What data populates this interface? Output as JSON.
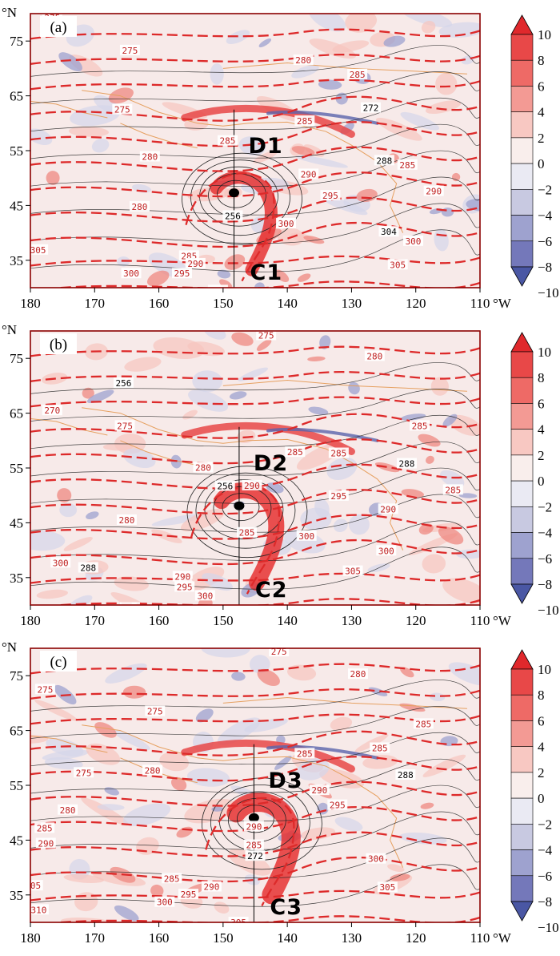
{
  "units": {
    "lat": "°N",
    "lon": "°W"
  },
  "x_ticks": [
    "180",
    "170",
    "160",
    "150",
    "140",
    "130",
    "120",
    "110"
  ],
  "y_ticks": [
    "75",
    "65",
    "55",
    "45",
    "35"
  ],
  "colorbar": {
    "labels": [
      "10",
      "8",
      "6",
      "4",
      "2",
      "0",
      "−2",
      "−4",
      "−6",
      "−8",
      "−10"
    ],
    "colors": [
      "#e0282c",
      "#e84848",
      "#ee6a66",
      "#f39a94",
      "#f8c8c2",
      "#f9eeec",
      "#eaeaf3",
      "#c8c9e1",
      "#9ea2cf",
      "#7478ba",
      "#4a57a4"
    ]
  },
  "colors": {
    "frame": "#8b0000",
    "theta": "#dd2a2a",
    "height": "#222222",
    "coast": "#e6a060"
  },
  "panels": [
    {
      "id": "a",
      "tag": "(a)",
      "upper_label": "D1",
      "lower_label": "C1",
      "center": [
        148.3,
        47.3
      ],
      "theta_labels": [
        {
          "t": "275",
          "lon": 176.6,
          "lat": 79.3
        },
        {
          "t": "275",
          "lon": 164.5,
          "lat": 73.3
        },
        {
          "t": "280",
          "lon": 137.5,
          "lat": 71.5
        },
        {
          "t": "285",
          "lon": 129.1,
          "lat": 68.9
        },
        {
          "t": "275",
          "lon": 165.7,
          "lat": 62.5
        },
        {
          "t": "285",
          "lon": 137.3,
          "lat": 60.4
        },
        {
          "t": "272",
          "lon": 127.0,
          "lat": 62.8
        },
        {
          "t": "285",
          "lon": 149.3,
          "lat": 56.8
        },
        {
          "t": "280",
          "lon": 161.4,
          "lat": 53.9
        },
        {
          "t": "288",
          "lon": 124.9,
          "lat": 53.2
        },
        {
          "t": "285",
          "lon": 121.3,
          "lat": 52.4
        },
        {
          "t": "290",
          "lon": 136.7,
          "lat": 50.7
        },
        {
          "t": "295",
          "lon": 133.3,
          "lat": 46.8
        },
        {
          "t": "290",
          "lon": 117.2,
          "lat": 47.6
        },
        {
          "t": "280",
          "lon": 163.0,
          "lat": 44.8
        },
        {
          "t": "256",
          "lon": 148.5,
          "lat": 43.1
        },
        {
          "t": "300",
          "lon": 140.2,
          "lat": 41.7
        },
        {
          "t": "304",
          "lon": 124.2,
          "lat": 40.2
        },
        {
          "t": "300",
          "lon": 120.4,
          "lat": 38.5
        },
        {
          "t": "285",
          "lon": 155.3,
          "lat": 35.8
        },
        {
          "t": "290",
          "lon": 154.3,
          "lat": 34.4
        },
        {
          "t": "295",
          "lon": 156.4,
          "lat": 32.6
        },
        {
          "t": "300",
          "lon": 164.3,
          "lat": 32.6
        },
        {
          "t": "305",
          "lon": 122.8,
          "lat": 34.2
        },
        {
          "t": "305",
          "lon": 150.8,
          "lat": 29.5
        },
        {
          "t": "305",
          "lon": 178.8,
          "lat": 36.9
        }
      ]
    },
    {
      "id": "b",
      "tag": "(b)",
      "upper_label": "D2",
      "lower_label": "C2",
      "center": [
        147.5,
        48.1
      ],
      "theta_labels": [
        {
          "t": "275",
          "lon": 143.3,
          "lat": 79.2
        },
        {
          "t": "280",
          "lon": 126.4,
          "lat": 75.4
        },
        {
          "t": "256",
          "lon": 165.5,
          "lat": 70.5
        },
        {
          "t": "270",
          "lon": 176.6,
          "lat": 65.5
        },
        {
          "t": "275",
          "lon": 165.3,
          "lat": 62.7
        },
        {
          "t": "285",
          "lon": 119.4,
          "lat": 62.7
        },
        {
          "t": "285",
          "lon": 138.8,
          "lat": 57.9
        },
        {
          "t": "285",
          "lon": 132.0,
          "lat": 57.7
        },
        {
          "t": "280",
          "lon": 153.1,
          "lat": 55.1
        },
        {
          "t": "288",
          "lon": 121.4,
          "lat": 55.8
        },
        {
          "t": "256",
          "lon": 149.7,
          "lat": 51.7
        },
        {
          "t": "290",
          "lon": 145.5,
          "lat": 51.8
        },
        {
          "t": "285",
          "lon": 114.2,
          "lat": 51.0
        },
        {
          "t": "295",
          "lon": 132.0,
          "lat": 49.9
        },
        {
          "t": "290",
          "lon": 124.3,
          "lat": 47.5
        },
        {
          "t": "280",
          "lon": 165.0,
          "lat": 45.5
        },
        {
          "t": "285",
          "lon": 146.3,
          "lat": 43.2
        },
        {
          "t": "300",
          "lon": 137.0,
          "lat": 42.6
        },
        {
          "t": "300",
          "lon": 124.6,
          "lat": 39.9
        },
        {
          "t": "300",
          "lon": 175.3,
          "lat": 37.7
        },
        {
          "t": "288",
          "lon": 171.0,
          "lat": 36.8
        },
        {
          "t": "305",
          "lon": 129.8,
          "lat": 36.2
        },
        {
          "t": "290",
          "lon": 156.3,
          "lat": 35.2
        },
        {
          "t": "295",
          "lon": 156.0,
          "lat": 33.3
        },
        {
          "t": "300",
          "lon": 152.8,
          "lat": 31.7
        },
        {
          "t": "305",
          "lon": 164.5,
          "lat": 29.5
        }
      ]
    },
    {
      "id": "c",
      "tag": "(c)",
      "upper_label": "D3",
      "lower_label": "C3",
      "center": [
        145.2,
        49.1
      ],
      "theta_labels": [
        {
          "t": "275",
          "lon": 141.3,
          "lat": 79.4
        },
        {
          "t": "280",
          "lon": 129.0,
          "lat": 75.3
        },
        {
          "t": "275",
          "lon": 177.7,
          "lat": 72.5
        },
        {
          "t": "275",
          "lon": 160.6,
          "lat": 68.5
        },
        {
          "t": "285",
          "lon": 118.8,
          "lat": 66.2
        },
        {
          "t": "285",
          "lon": 137.3,
          "lat": 60.8
        },
        {
          "t": "285",
          "lon": 125.6,
          "lat": 61.8
        },
        {
          "t": "275",
          "lon": 171.7,
          "lat": 57.3
        },
        {
          "t": "280",
          "lon": 161.0,
          "lat": 57.7
        },
        {
          "t": "288",
          "lon": 121.6,
          "lat": 56.9
        },
        {
          "t": "290",
          "lon": 135.0,
          "lat": 54.1
        },
        {
          "t": "295",
          "lon": 132.2,
          "lat": 51.4
        },
        {
          "t": "280",
          "lon": 174.2,
          "lat": 50.5
        },
        {
          "t": "290",
          "lon": 145.2,
          "lat": 47.5
        },
        {
          "t": "285",
          "lon": 177.8,
          "lat": 47.2
        },
        {
          "t": "290",
          "lon": 177.6,
          "lat": 44.4
        },
        {
          "t": "285",
          "lon": 145.2,
          "lat": 44.1
        },
        {
          "t": "272",
          "lon": 145.0,
          "lat": 42.1
        },
        {
          "t": "300",
          "lon": 126.2,
          "lat": 41.6
        },
        {
          "t": "285",
          "lon": 158.0,
          "lat": 38.0
        },
        {
          "t": "305",
          "lon": 179.6,
          "lat": 36.7
        },
        {
          "t": "290",
          "lon": 151.8,
          "lat": 36.5
        },
        {
          "t": "305",
          "lon": 124.4,
          "lat": 36.4
        },
        {
          "t": "295",
          "lon": 155.4,
          "lat": 35.1
        },
        {
          "t": "300",
          "lon": 159.1,
          "lat": 33.7
        },
        {
          "t": "310",
          "lon": 178.7,
          "lat": 32.3
        },
        {
          "t": "305",
          "lon": 147.6,
          "lat": 30.0
        }
      ]
    }
  ]
}
